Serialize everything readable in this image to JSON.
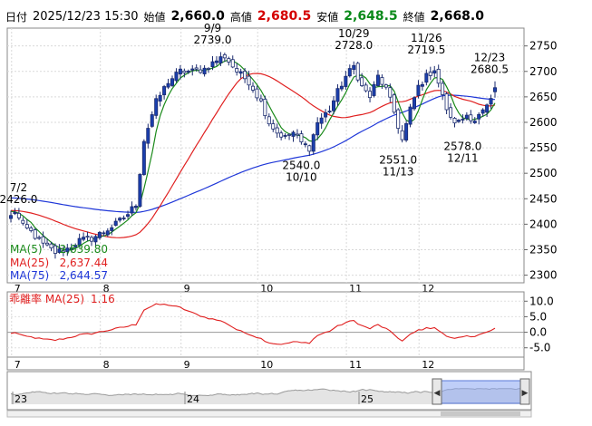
{
  "header": {
    "date_label": "日付",
    "datetime": "2025/12/23 15:30",
    "open_label": "始値",
    "open": "2,660.0",
    "high_label": "高値",
    "high": "2,680.5",
    "low_label": "安値",
    "low": "2,648.5",
    "close_label": "終値",
    "close": "2,668.0"
  },
  "legend": {
    "ma5_label": "MA(5)",
    "ma5_value": "2,639.80",
    "ma25_label": "MA(25)",
    "ma25_value": "2,637.44",
    "ma75_label": "MA(75)",
    "ma75_value": "2,644.57"
  },
  "sub": {
    "label": "乖離率 MA(25)",
    "value": "1.16",
    "ticks": [
      "10.0",
      "5.0",
      "0.0",
      "-5.0"
    ]
  },
  "annotations": [
    {
      "label": "7/2",
      "value": "2426.0"
    },
    {
      "label": "9/9",
      "value": "2739.0"
    },
    {
      "label": "10/29",
      "value": "2728.0"
    },
    {
      "label": "11/26",
      "value": "2719.5"
    },
    {
      "label": "12/23",
      "value": "2680.5"
    },
    {
      "label": "10/10",
      "value": "2540.0"
    },
    {
      "label": "11/13",
      "value": "2551.0"
    },
    {
      "label": "12/11",
      "value": "2578.0"
    }
  ],
  "navigator": {
    "year_labels": [
      "23",
      "24",
      "25"
    ],
    "left_arrow": "◀",
    "right_arrow": "▶"
  },
  "colors": {
    "up": "#1a3fae",
    "down": "#ffffff",
    "ma5": "#1a8a1a",
    "ma25": "#e02020",
    "ma75": "#1f37d8",
    "deviation": "#e02020"
  },
  "chart_data": {
    "type": "candlestick",
    "x_tick_labels": [
      "7",
      "8",
      "9",
      "10",
      "11",
      "12"
    ],
    "y_ticks": [
      2300,
      2350,
      2400,
      2450,
      2500,
      2550,
      2600,
      2650,
      2700,
      2750
    ],
    "ylim": [
      2285,
      2785
    ],
    "sub_ylim": [
      -8,
      13
    ],
    "months": [
      {
        "m": "7",
        "days": 22
      },
      {
        "m": "8",
        "days": 20
      },
      {
        "m": "9",
        "days": 19
      },
      {
        "m": "10",
        "days": 22
      },
      {
        "m": "11",
        "days": 18
      },
      {
        "m": "12",
        "days": 16
      }
    ],
    "anchors": [
      [
        0,
        2415
      ],
      [
        1,
        2426
      ],
      [
        3,
        2395
      ],
      [
        5,
        2385
      ],
      [
        8,
        2360
      ],
      [
        11,
        2345
      ],
      [
        14,
        2352
      ],
      [
        17,
        2368
      ],
      [
        20,
        2372
      ],
      [
        23,
        2385
      ],
      [
        26,
        2400
      ],
      [
        29,
        2420
      ],
      [
        31,
        2440
      ],
      [
        33,
        2565
      ],
      [
        36,
        2640
      ],
      [
        39,
        2680
      ],
      [
        42,
        2700
      ],
      [
        45,
        2700
      ],
      [
        48,
        2705
      ],
      [
        51,
        2722
      ],
      [
        53,
        2730
      ],
      [
        56,
        2700
      ],
      [
        59,
        2680
      ],
      [
        62,
        2640
      ],
      [
        64,
        2600
      ],
      [
        66,
        2580
      ],
      [
        68,
        2570
      ],
      [
        70,
        2580
      ],
      [
        72,
        2560
      ],
      [
        74,
        2550
      ],
      [
        76,
        2600
      ],
      [
        79,
        2625
      ],
      [
        81,
        2660
      ],
      [
        83,
        2690
      ],
      [
        85,
        2710
      ],
      [
        87,
        2670
      ],
      [
        89,
        2650
      ],
      [
        91,
        2690
      ],
      [
        93,
        2665
      ],
      [
        95,
        2620
      ],
      [
        97,
        2565
      ],
      [
        99,
        2625
      ],
      [
        101,
        2670
      ],
      [
        103,
        2690
      ],
      [
        105,
        2705
      ],
      [
        107,
        2650
      ],
      [
        109,
        2605
      ],
      [
        111,
        2600
      ],
      [
        113,
        2615
      ],
      [
        115,
        2605
      ],
      [
        117,
        2620
      ],
      [
        119,
        2640
      ],
      [
        120,
        2668
      ]
    ],
    "annotation_points": [
      {
        "idx": 1,
        "price": 2426.0,
        "pos": "above"
      },
      {
        "idx": 50,
        "price": 2739.0,
        "pos": "above"
      },
      {
        "idx": 85,
        "price": 2728.0,
        "pos": "above"
      },
      {
        "idx": 103,
        "price": 2719.5,
        "pos": "above"
      },
      {
        "idx": 120,
        "price": 2680.5,
        "pos": "above"
      },
      {
        "idx": 72,
        "price": 2540.0,
        "pos": "below"
      },
      {
        "idx": 96,
        "price": 2551.0,
        "pos": "below"
      },
      {
        "idx": 112,
        "price": 2578.0,
        "pos": "below"
      }
    ]
  }
}
